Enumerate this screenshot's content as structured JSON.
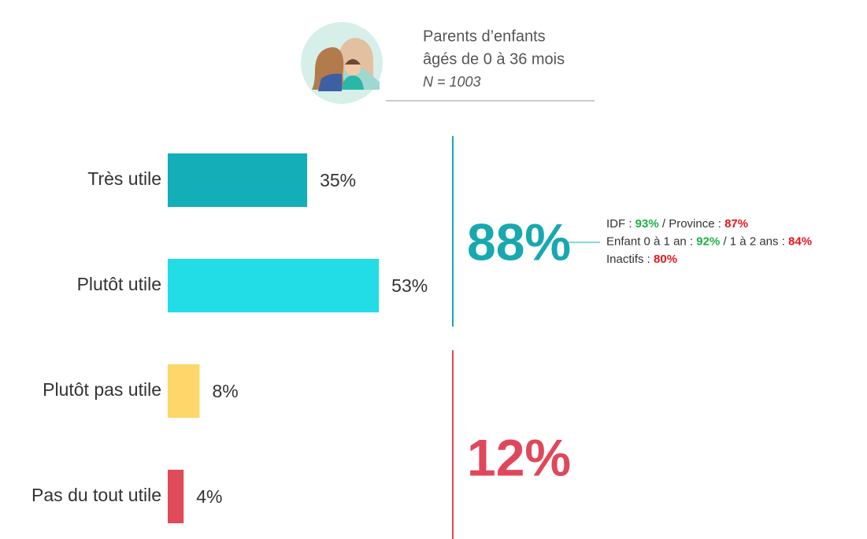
{
  "header": {
    "lines": [
      "Parents d’enfants",
      "âgés de 0 à 36 mois"
    ],
    "sample": "N = 1003"
  },
  "chart_data": {
    "type": "hbar",
    "categories": [
      "Très utile",
      "Plutôt utile",
      "Plutôt pas utile",
      "Pas du tout utile"
    ],
    "values": [
      35,
      53,
      8,
      4
    ],
    "value_labels": [
      "35%",
      "53%",
      "8%",
      "4%"
    ],
    "colors": [
      "#14aeb8",
      "#22dde6",
      "#fdd76a",
      "#e04b5a"
    ],
    "groups": [
      {
        "value": 88,
        "label": "88%",
        "color": "#17a8b0"
      },
      {
        "value": 12,
        "label": "12%",
        "color": "#e0475a"
      }
    ],
    "notes": [
      [
        {
          "text": "IDF : "
        },
        {
          "text": "93%",
          "color": "#1fb04b"
        },
        {
          "text": " / Province : "
        },
        {
          "text": "87%",
          "color": "#e8151b"
        }
      ],
      [
        {
          "text": "Enfant 0 à 1 an : "
        },
        {
          "text": "92%",
          "color": "#1fb04b"
        },
        {
          "text": " / 1 à 2 ans : "
        },
        {
          "text": "84%",
          "color": "#e8151b"
        }
      ],
      [
        {
          "text": "Inactifs : "
        },
        {
          "text": "80%",
          "color": "#e8151b"
        }
      ]
    ]
  }
}
